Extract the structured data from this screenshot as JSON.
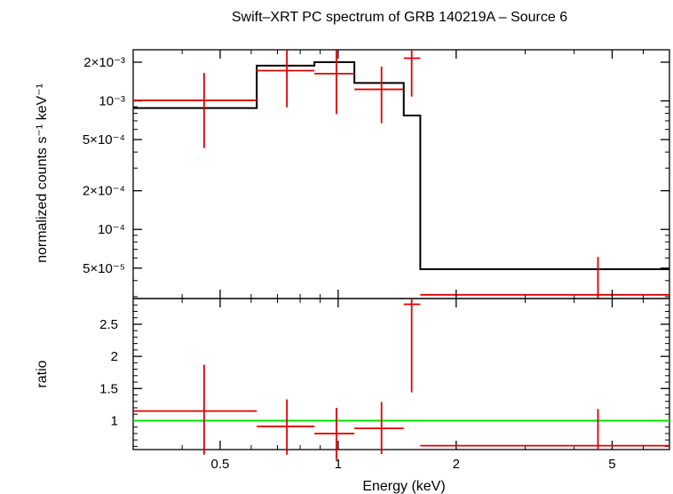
{
  "title": "Swift–XRT PC spectrum of GRB 140219A – Source 6",
  "chart_data": [
    {
      "type": "line",
      "panel": "spectrum",
      "ylabel": "normalized counts s⁻¹ keV⁻¹",
      "xscale": "log",
      "yscale": "log",
      "xlim": [
        0.3,
        7.0
      ],
      "ylim": [
        2.9e-05,
        0.0025
      ],
      "yticks": [
        {
          "value": 0.002,
          "label": "2×10⁻³"
        },
        {
          "value": 0.001,
          "label": "10⁻³"
        },
        {
          "value": 0.0005,
          "label": "5×10⁻⁴"
        },
        {
          "value": 0.0002,
          "label": "2×10⁻⁴"
        },
        {
          "value": 0.0001,
          "label": "10⁻⁴"
        },
        {
          "value": 5e-05,
          "label": "5×10⁻⁵"
        }
      ],
      "data_points": [
        {
          "x": 0.455,
          "xlo": 0.3,
          "xhi": 0.62,
          "y": 0.00101,
          "ylo": 0.00043,
          "yhi": 0.00165
        },
        {
          "x": 0.74,
          "xlo": 0.62,
          "xhi": 0.87,
          "y": 0.00172,
          "ylo": 0.00089,
          "yhi": 0.00255
        },
        {
          "x": 0.99,
          "xlo": 0.87,
          "xhi": 1.1,
          "y": 0.00163,
          "ylo": 0.00079,
          "yhi": 0.0026
        },
        {
          "x": 1.29,
          "xlo": 1.1,
          "xhi": 1.47,
          "y": 0.00123,
          "ylo": 0.00067,
          "yhi": 0.00185
        },
        {
          "x": 1.54,
          "xlo": 1.47,
          "xhi": 1.62,
          "y": 0.00215,
          "ylo": 0.00108,
          "yhi": 0.0025
        },
        {
          "x": 4.6,
          "xlo": 1.62,
          "xhi": 7.0,
          "y": 3.1e-05,
          "ylo": 2.9e-05,
          "yhi": 6.1e-05
        }
      ],
      "model_steps": [
        {
          "x0": 0.3,
          "x1": 0.62,
          "y": 0.00088
        },
        {
          "x0": 0.62,
          "x1": 0.87,
          "y": 0.00188
        },
        {
          "x0": 0.87,
          "x1": 1.1,
          "y": 0.002
        },
        {
          "x0": 1.1,
          "x1": 1.47,
          "y": 0.00138
        },
        {
          "x0": 1.47,
          "x1": 1.62,
          "y": 0.00077
        },
        {
          "x0": 1.62,
          "x1": 7.0,
          "y": 4.9e-05
        }
      ],
      "colors": {
        "data": "#e00000",
        "model": "#000000"
      }
    },
    {
      "type": "scatter",
      "panel": "ratio",
      "xlabel": "Energy (keV)",
      "ylabel": "ratio",
      "xscale": "log",
      "xlim": [
        0.3,
        7.0
      ],
      "ylim": [
        0.55,
        2.9
      ],
      "xticks": [
        {
          "value": 0.5,
          "label": "0.5"
        },
        {
          "value": 1,
          "label": "1"
        },
        {
          "value": 2,
          "label": "2"
        },
        {
          "value": 5,
          "label": "5"
        }
      ],
      "yticks": [
        {
          "value": 1,
          "label": "1"
        },
        {
          "value": 1.5,
          "label": "1.5"
        },
        {
          "value": 2,
          "label": "2"
        },
        {
          "value": 2.5,
          "label": "2.5"
        }
      ],
      "data_points": [
        {
          "x": 0.455,
          "xlo": 0.3,
          "xhi": 0.62,
          "y": 1.15,
          "ylo": 0.47,
          "yhi": 1.87
        },
        {
          "x": 0.74,
          "xlo": 0.62,
          "xhi": 0.87,
          "y": 0.91,
          "ylo": 0.47,
          "yhi": 1.33
        },
        {
          "x": 0.99,
          "xlo": 0.87,
          "xhi": 1.1,
          "y": 0.8,
          "ylo": 0.39,
          "yhi": 1.2
        },
        {
          "x": 1.29,
          "xlo": 1.1,
          "xhi": 1.47,
          "y": 0.88,
          "ylo": 0.48,
          "yhi": 1.29
        },
        {
          "x": 1.54,
          "xlo": 1.47,
          "xhi": 1.62,
          "y": 2.81,
          "ylo": 1.44,
          "yhi": 2.9
        },
        {
          "x": 4.6,
          "xlo": 1.62,
          "xhi": 7.0,
          "y": 0.61,
          "ylo": 0.55,
          "yhi": 1.18
        }
      ],
      "reference_line": 1,
      "colors": {
        "data": "#e00000",
        "reference": "#00e000"
      }
    }
  ]
}
